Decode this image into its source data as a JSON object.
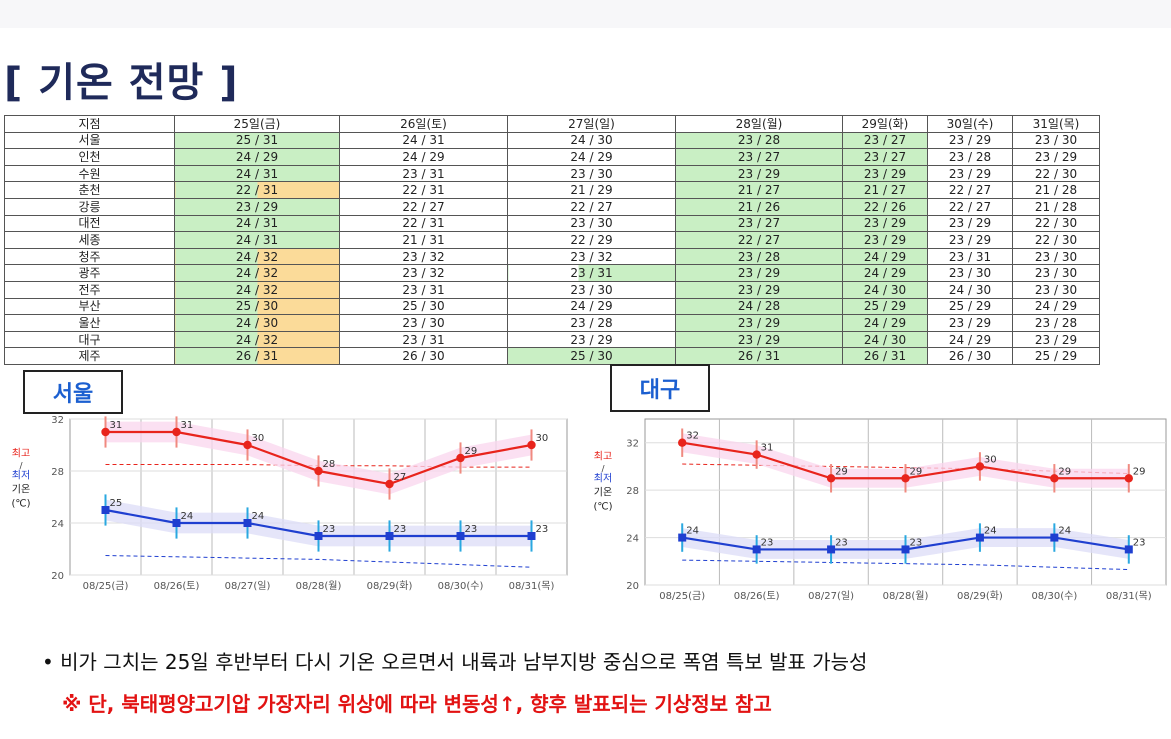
{
  "title": "[ 기온 전망 ]",
  "table": {
    "header": [
      "지점",
      "25일(금)",
      "26일(토)",
      "27일(일)",
      "28일(월)",
      "29일(화)",
      "30일(수)",
      "31일(목)"
    ],
    "rows": [
      {
        "city": "서울",
        "vals": [
          "25 / 31",
          "24 / 31",
          "24 / 30",
          "23 / 28",
          "23 / 27",
          "23 / 29",
          "23 / 30"
        ]
      },
      {
        "city": "인천",
        "vals": [
          "24 / 29",
          "24 / 29",
          "24 / 29",
          "23 / 27",
          "23 / 27",
          "23 / 28",
          "23 / 29"
        ]
      },
      {
        "city": "수원",
        "vals": [
          "24 / 31",
          "23 / 31",
          "23 / 30",
          "23 / 29",
          "23 / 29",
          "23 / 29",
          "22 / 30"
        ]
      },
      {
        "city": "춘천",
        "vals": [
          "22 / 31",
          "22 / 31",
          "21 / 29",
          "21 / 27",
          "21 / 27",
          "22 / 27",
          "21 / 28"
        ]
      },
      {
        "city": "강릉",
        "vals": [
          "23 / 29",
          "22 / 27",
          "22 / 27",
          "21 / 26",
          "22 / 26",
          "22 / 27",
          "21 / 28"
        ]
      },
      {
        "city": "대전",
        "vals": [
          "24 / 31",
          "22 / 31",
          "23 / 30",
          "23 / 27",
          "23 / 29",
          "23 / 29",
          "22 / 30"
        ]
      },
      {
        "city": "세종",
        "vals": [
          "24 / 31",
          "21 / 31",
          "22 / 29",
          "22 / 27",
          "23 / 29",
          "23 / 29",
          "22 / 30"
        ]
      },
      {
        "city": "청주",
        "vals": [
          "24 / 32",
          "23 / 32",
          "23 / 32",
          "23 / 28",
          "24 / 29",
          "23 / 31",
          "23 / 30"
        ]
      },
      {
        "city": "광주",
        "vals": [
          "24 / 32",
          "23 / 32",
          "23 / 31",
          "23 / 29",
          "24 / 29",
          "23 / 30",
          "23 / 30"
        ]
      },
      {
        "city": "전주",
        "vals": [
          "24 / 32",
          "23 / 31",
          "23 / 30",
          "23 / 29",
          "24 / 30",
          "24 / 30",
          "23 / 30"
        ]
      },
      {
        "city": "부산",
        "vals": [
          "25 / 30",
          "25 / 30",
          "24 / 29",
          "24 / 28",
          "25 / 29",
          "25 / 29",
          "24 / 29"
        ]
      },
      {
        "city": "울산",
        "vals": [
          "24 / 30",
          "23 / 30",
          "23 / 28",
          "23 / 29",
          "24 / 29",
          "23 / 29",
          "23 / 28"
        ]
      },
      {
        "city": "대구",
        "vals": [
          "24 / 32",
          "23 / 31",
          "23 / 29",
          "23 / 29",
          "24 / 30",
          "24 / 29",
          "23 / 29"
        ]
      },
      {
        "city": "제주",
        "vals": [
          "26 / 31",
          "26 / 30",
          "25 / 30",
          "26 / 31",
          "26 / 31",
          "26 / 30",
          "25 / 29"
        ]
      }
    ],
    "colors": {
      "green": "#c9efc4",
      "orange": "#fbdb99"
    }
  },
  "legend": {
    "max": "최고",
    "sep": "/",
    "min": "최저",
    "label": "기온",
    "unit": "(℃)"
  },
  "chart_data": [
    {
      "type": "line",
      "title": "서울",
      "x": [
        "08/25(금)",
        "08/26(토)",
        "08/27(일)",
        "08/28(월)",
        "08/29(화)",
        "08/30(수)",
        "08/31(목)"
      ],
      "ylim": [
        20,
        32
      ],
      "yticks": [
        20,
        24,
        28,
        32
      ],
      "series": [
        {
          "name": "최고",
          "color": "#e8241c",
          "values": [
            31,
            31,
            30,
            28,
            27,
            29,
            30
          ]
        },
        {
          "name": "최저",
          "color": "#1f3fd0",
          "values": [
            25,
            24,
            24,
            23,
            23,
            23,
            23
          ]
        }
      ],
      "normal_max": [
        28.5,
        28.5,
        28.5,
        28.4,
        28.4,
        28.3,
        28.3
      ],
      "normal_min": [
        21.5,
        21.4,
        21.3,
        21.2,
        21.0,
        20.8,
        20.6
      ]
    },
    {
      "type": "line",
      "title": "대구",
      "x": [
        "08/25(금)",
        "08/26(토)",
        "08/27(일)",
        "08/28(월)",
        "08/29(화)",
        "08/30(수)",
        "08/31(목)"
      ],
      "ylim": [
        20,
        34
      ],
      "yticks": [
        20,
        24,
        28,
        32
      ],
      "series": [
        {
          "name": "최고",
          "color": "#e8241c",
          "values": [
            32,
            31,
            29,
            29,
            30,
            29,
            29
          ]
        },
        {
          "name": "최저",
          "color": "#1f3fd0",
          "values": [
            24,
            23,
            23,
            23,
            24,
            24,
            23
          ]
        }
      ],
      "normal_max": [
        30.2,
        30.1,
        30.0,
        29.9,
        29.8,
        29.6,
        29.4
      ],
      "normal_min": [
        22.1,
        22.0,
        21.9,
        21.8,
        21.7,
        21.5,
        21.3
      ]
    }
  ],
  "bullet": "•  비가 그치는 25일 후반부터 다시 기온 오르면서 내륙과 남부지방 중심으로 폭염 특보 발표 가능성",
  "note": "※  단, 북태평양고기압 가장자리 위상에 따라 변동성↑, 향후 발표되는 기상정보 참고"
}
